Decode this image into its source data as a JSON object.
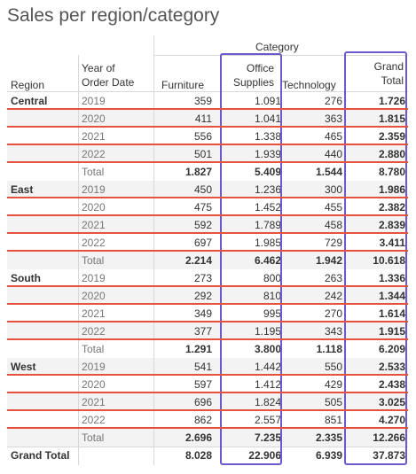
{
  "title": "Sales per region/category",
  "header": {
    "category": "Category",
    "region": "Region",
    "year_line1": "Year of",
    "year_line2": "Order Date",
    "furniture": "Furniture",
    "office_line1": "Office",
    "office_line2": "Supplies",
    "technology": "Technology",
    "grand_line1": "Grand",
    "grand_line2": "Total"
  },
  "rows": [
    {
      "region": "Central",
      "year": "2019",
      "furniture": "359",
      "office": "1.091",
      "technology": "276",
      "grand": "1.726"
    },
    {
      "region": "",
      "year": "2020",
      "furniture": "411",
      "office": "1.041",
      "technology": "363",
      "grand": "1.815"
    },
    {
      "region": "",
      "year": "2021",
      "furniture": "556",
      "office": "1.338",
      "technology": "465",
      "grand": "2.359"
    },
    {
      "region": "",
      "year": "2022",
      "furniture": "501",
      "office": "1.939",
      "technology": "440",
      "grand": "2.880"
    },
    {
      "region": "",
      "year": "Total",
      "furniture": "1.827",
      "office": "5.409",
      "technology": "1.544",
      "grand": "8.780"
    },
    {
      "region": "East",
      "year": "2019",
      "furniture": "450",
      "office": "1.236",
      "technology": "300",
      "grand": "1.986"
    },
    {
      "region": "",
      "year": "2020",
      "furniture": "475",
      "office": "1.452",
      "technology": "455",
      "grand": "2.382"
    },
    {
      "region": "",
      "year": "2021",
      "furniture": "592",
      "office": "1.789",
      "technology": "458",
      "grand": "2.839"
    },
    {
      "region": "",
      "year": "2022",
      "furniture": "697",
      "office": "1.985",
      "technology": "729",
      "grand": "3.411"
    },
    {
      "region": "",
      "year": "Total",
      "furniture": "2.214",
      "office": "6.462",
      "technology": "1.942",
      "grand": "10.618"
    },
    {
      "region": "South",
      "year": "2019",
      "furniture": "273",
      "office": "800",
      "technology": "263",
      "grand": "1.336"
    },
    {
      "region": "",
      "year": "2020",
      "furniture": "292",
      "office": "810",
      "technology": "242",
      "grand": "1.344"
    },
    {
      "region": "",
      "year": "2021",
      "furniture": "349",
      "office": "995",
      "technology": "270",
      "grand": "1.614"
    },
    {
      "region": "",
      "year": "2022",
      "furniture": "377",
      "office": "1.195",
      "technology": "343",
      "grand": "1.915"
    },
    {
      "region": "",
      "year": "Total",
      "furniture": "1.291",
      "office": "3.800",
      "technology": "1.118",
      "grand": "6.209"
    },
    {
      "region": "West",
      "year": "2019",
      "furniture": "541",
      "office": "1.442",
      "technology": "550",
      "grand": "2.533"
    },
    {
      "region": "",
      "year": "2020",
      "furniture": "597",
      "office": "1.412",
      "technology": "429",
      "grand": "2.438"
    },
    {
      "region": "",
      "year": "2021",
      "furniture": "696",
      "office": "1.824",
      "technology": "505",
      "grand": "3.025"
    },
    {
      "region": "",
      "year": "2022",
      "furniture": "862",
      "office": "2.557",
      "technology": "851",
      "grand": "4.270"
    },
    {
      "region": "",
      "year": "Total",
      "furniture": "2.696",
      "office": "7.235",
      "technology": "2.335",
      "grand": "12.266"
    },
    {
      "region": "Grand Total",
      "year": "",
      "furniture": "8.028",
      "office": "22.906",
      "technology": "6.939",
      "grand": "37.873"
    }
  ],
  "annotations": {
    "line_color": "#e5533d",
    "box_color": "#6a5acd"
  }
}
